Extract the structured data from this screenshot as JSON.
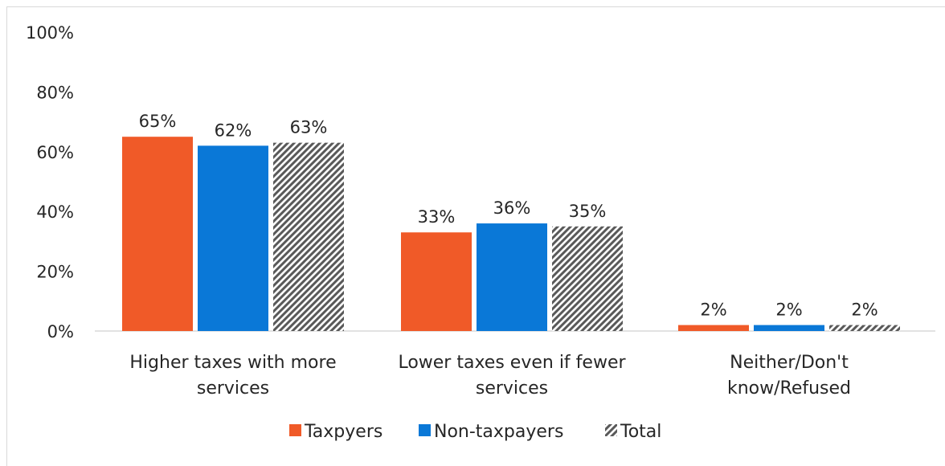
{
  "chart_data": {
    "type": "bar",
    "categories": [
      [
        "Higher taxes with more",
        "services"
      ],
      [
        "Lower taxes even if fewer",
        "services"
      ],
      [
        "Neither/Don't",
        "know/Refused"
      ]
    ],
    "series": [
      {
        "name": "Taxpyers",
        "values": [
          65,
          33,
          2
        ],
        "labels": [
          "65%",
          "33%",
          "2%"
        ],
        "color": "#f05a28",
        "pattern": "solid"
      },
      {
        "name": "Non-taxpayers",
        "values": [
          62,
          36,
          2
        ],
        "labels": [
          "62%",
          "36%",
          "2%"
        ],
        "color": "#0a78d7",
        "pattern": "solid"
      },
      {
        "name": "Total",
        "values": [
          63,
          35,
          2
        ],
        "labels": [
          "63%",
          "35%",
          "2%"
        ],
        "color": "#595959",
        "pattern": "diagonal-hatch"
      }
    ],
    "yticks": [
      "0%",
      "20%",
      "40%",
      "60%",
      "80%",
      "100%"
    ],
    "ylim": [
      0,
      100
    ],
    "grid": false,
    "legend_position": "bottom"
  }
}
